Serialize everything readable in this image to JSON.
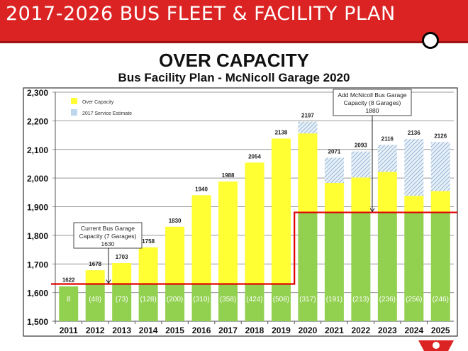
{
  "header": {
    "title": "2017-2026 BUS FLEET & FACILITY PLAN"
  },
  "slide": {
    "title": "OVER CAPACITY",
    "subtitle": "Bus Facility Plan - McNicoll Garage 2020"
  },
  "colors": {
    "header": "#dc2323",
    "green": "#92d050",
    "yellow": "#ffff33",
    "hatch": "#9dc3e6",
    "capacity_line": "#e00000"
  },
  "chart_data": {
    "type": "bar",
    "stacked": true,
    "title": "Bus Facility Plan - McNicoll Garage 2020",
    "ylim": [
      1500,
      2300
    ],
    "yticks": [
      "1,500",
      "1,600",
      "1,700",
      "1,800",
      "1,900",
      "2,000",
      "2,100",
      "2,200",
      "2,300"
    ],
    "yticks_values": [
      1500,
      1600,
      1700,
      1800,
      1900,
      2000,
      2100,
      2200,
      2300
    ],
    "grid": true,
    "legend_position": "top-left",
    "legend": [
      {
        "label": "Over Capacity",
        "color": "#ffff33"
      },
      {
        "label": "2017 Service Estimate",
        "color": "#bdd7ee"
      }
    ],
    "categories": [
      "2011",
      "2012",
      "2013",
      "2014",
      "2015",
      "2016",
      "2017",
      "2018",
      "2019",
      "2020",
      "2021",
      "2022",
      "2023",
      "2024",
      "2025"
    ],
    "totals": [
      1622,
      1678,
      1703,
      1758,
      1830,
      1940,
      1988,
      2054,
      2138,
      2197,
      2071,
      2093,
      2116,
      2136,
      2126
    ],
    "total_labels": [
      "1622",
      "1678",
      "1703",
      "1758",
      "1830",
      "1940",
      "1988",
      "2054",
      "2138",
      "2197",
      "2071",
      "2093",
      "2116",
      "2136",
      "2126"
    ],
    "capacity": [
      1630,
      1630,
      1630,
      1630,
      1630,
      1630,
      1630,
      1630,
      1630,
      1880,
      1880,
      1880,
      1880,
      1880,
      1880
    ],
    "over_capacity_top": [
      1622,
      1678,
      1703,
      1758,
      1830,
      1940,
      1988,
      2054,
      2138,
      2156,
      1983,
      2002,
      2022,
      1938,
      1955
    ],
    "capacity_labels": [
      "8",
      "(48)",
      "(73)",
      "(128)",
      "(200)",
      "(310)",
      "(358)",
      "(424)",
      "(508)",
      "(317)",
      "(191)",
      "(213)",
      "(236)",
      "(256)",
      "(246)"
    ],
    "annotations": [
      {
        "lines": [
          "Current Bus Garage",
          "Capacity (7 Garages)",
          "1630"
        ],
        "x": "2012/2013",
        "y": 1630
      },
      {
        "lines": [
          "Add McNicoll Bus Garage",
          "Capacity (8 Garages)",
          "1880"
        ],
        "x": "2022/2023",
        "y": 1880
      }
    ]
  }
}
